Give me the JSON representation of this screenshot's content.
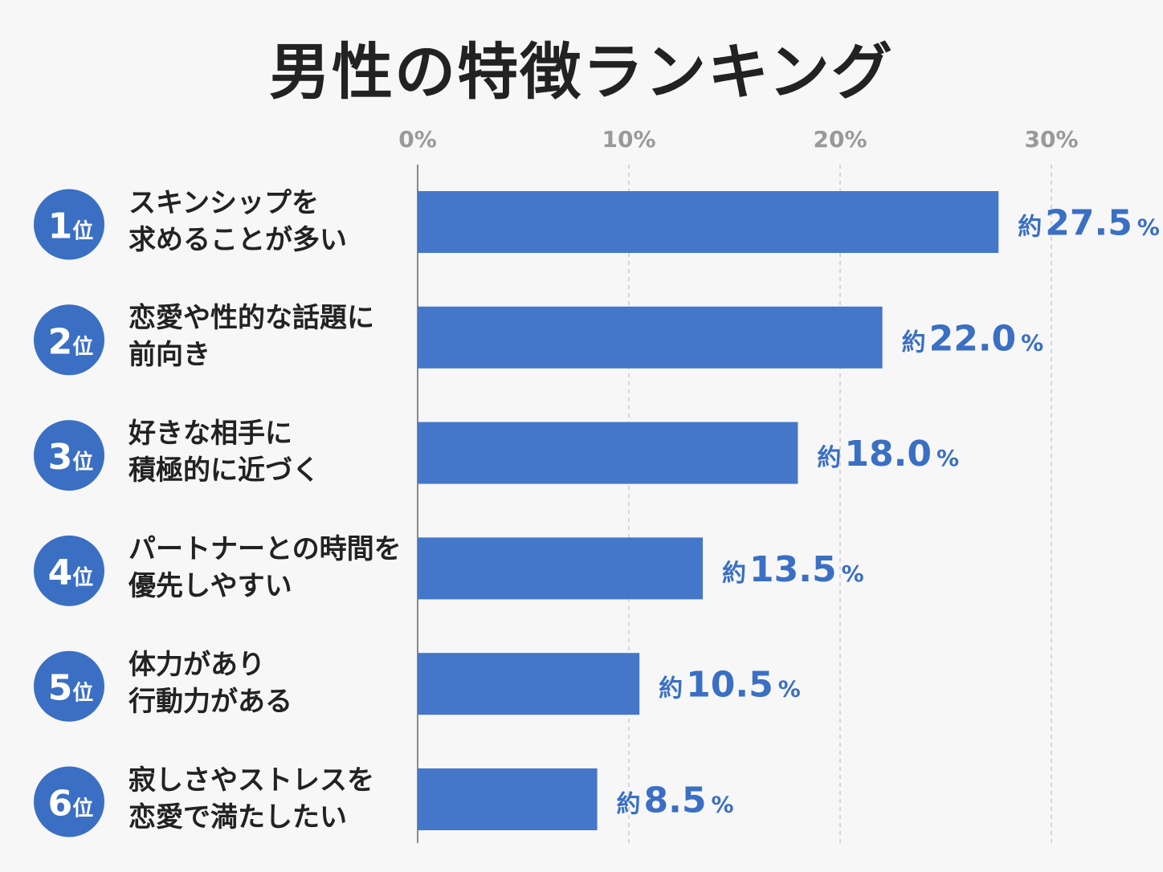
{
  "title": "男性の特徴ランキング",
  "colors": {
    "bar": "#4477c9",
    "value_text": "#3a6fc4",
    "rank_circle": "#3a6fc4",
    "tick_text": "#999999",
    "grid": "#cccccc",
    "axis": "#888888",
    "label_text": "#222222"
  },
  "chart_data": {
    "type": "bar",
    "orientation": "horizontal",
    "xlim": [
      0,
      30
    ],
    "x_ticks": [
      "0%",
      "10%",
      "20%",
      "30%"
    ],
    "x_tick_values": [
      0,
      10,
      20,
      30
    ],
    "grid": true,
    "items": [
      {
        "rank_num": "1",
        "rank_suffix": "位",
        "label": "スキンシップを\n求めることが多い",
        "value": 27.5,
        "prefix": "約",
        "value_text": "27.5",
        "unit": "%"
      },
      {
        "rank_num": "2",
        "rank_suffix": "位",
        "label": "恋愛や性的な話題に\n前向き",
        "value": 22.0,
        "prefix": "約",
        "value_text": "22.0",
        "unit": "%"
      },
      {
        "rank_num": "3",
        "rank_suffix": "位",
        "label": "好きな相手に\n積極的に近づく",
        "value": 18.0,
        "prefix": "約",
        "value_text": "18.0",
        "unit": "%"
      },
      {
        "rank_num": "4",
        "rank_suffix": "位",
        "label": "パートナーとの時間を\n優先しやすい",
        "value": 13.5,
        "prefix": "約",
        "value_text": "13.5",
        "unit": "%"
      },
      {
        "rank_num": "5",
        "rank_suffix": "位",
        "label": "体力があり\n行動力がある",
        "value": 10.5,
        "prefix": "約",
        "value_text": "10.5",
        "unit": "%"
      },
      {
        "rank_num": "6",
        "rank_suffix": "位",
        "label": "寂しさやストレスを\n恋愛で満たしたい",
        "value": 8.5,
        "prefix": "約",
        "value_text": "8.5",
        "unit": "%"
      }
    ]
  }
}
